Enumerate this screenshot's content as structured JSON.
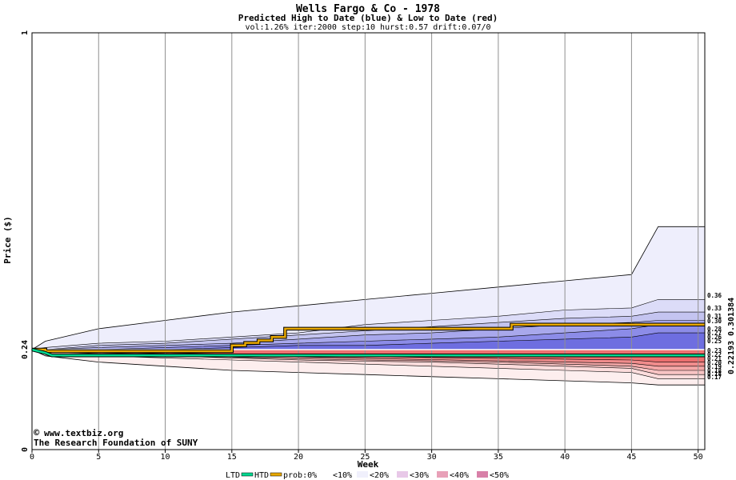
{
  "chart_data": {
    "type": "area",
    "title": "Wells Fargo & Co - 1978",
    "subtitle": "Predicted High to Date (blue) &  Low to Date (red)",
    "params": "vol:1.26% iter:2000 step:10 hurst:0.57 drift:0.07/0",
    "xlabel": "Week",
    "ylabel": "Price ($)",
    "xlim": [
      0,
      50.5
    ],
    "ylim": [
      0,
      1
    ],
    "x_ticks": [
      0,
      5,
      10,
      15,
      20,
      25,
      30,
      35,
      40,
      45,
      50
    ],
    "x_tick_labels": [
      "0",
      "5",
      "10",
      "15",
      "20",
      "25",
      "30",
      "35",
      "40",
      "45",
      "50"
    ],
    "y_tick_labels": [
      "0",
      "0.24",
      "1"
    ],
    "y_ticks": [
      0,
      0.24,
      1
    ],
    "start_price": 0.24,
    "grid": true,
    "bands_x": [
      0,
      1,
      5,
      10,
      15,
      20,
      25,
      30,
      35,
      40,
      45,
      47,
      50.5
    ],
    "envelope_high": [
      0.24,
      0.26,
      0.29,
      0.31,
      0.33,
      0.345,
      0.36,
      0.375,
      0.39,
      0.405,
      0.42,
      0.535,
      0.535
    ],
    "envelope_low": [
      0.24,
      0.225,
      0.21,
      0.2,
      0.19,
      0.185,
      0.18,
      0.175,
      0.17,
      0.165,
      0.16,
      0.155,
      0.155
    ],
    "high_bands": [
      {
        "prob": "<10%",
        "color": "#dcdcf8",
        "upper": [
          0.24,
          0.245,
          0.255,
          0.26,
          0.27,
          0.28,
          0.3,
          0.31,
          0.32,
          0.335,
          0.34,
          0.36,
          0.36
        ]
      },
      {
        "prob": "<20%",
        "color": "#c4c4f0",
        "upper": [
          0.24,
          0.24,
          0.25,
          0.255,
          0.265,
          0.275,
          0.285,
          0.295,
          0.305,
          0.315,
          0.32,
          0.33,
          0.33
        ]
      },
      {
        "prob": "<30%",
        "color": "#a8a8ec",
        "upper": [
          0.24,
          0.24,
          0.245,
          0.25,
          0.255,
          0.265,
          0.275,
          0.28,
          0.29,
          0.3,
          0.305,
          0.31,
          0.31
        ]
      },
      {
        "prob": "<40%",
        "color": "#8c8ce8",
        "upper": [
          0.24,
          0.24,
          0.24,
          0.245,
          0.25,
          0.255,
          0.26,
          0.265,
          0.27,
          0.28,
          0.29,
          0.3,
          0.3
        ]
      },
      {
        "prob": "<50%",
        "color": "#6e6ee0",
        "upper": [
          0.24,
          0.24,
          0.24,
          0.24,
          0.245,
          0.25,
          0.25,
          0.255,
          0.26,
          0.265,
          0.27,
          0.28,
          0.28
        ]
      }
    ],
    "low_bands": [
      {
        "prob": "<10%",
        "color": "#fcdcdc",
        "lower": [
          0.24,
          0.23,
          0.225,
          0.22,
          0.215,
          0.21,
          0.205,
          0.2,
          0.195,
          0.19,
          0.185,
          0.17,
          0.17
        ]
      },
      {
        "prob": "<20%",
        "color": "#f8c4c4",
        "lower": [
          0.24,
          0.235,
          0.23,
          0.225,
          0.22,
          0.215,
          0.212,
          0.21,
          0.205,
          0.2,
          0.195,
          0.18,
          0.18
        ]
      },
      {
        "prob": "<30%",
        "color": "#f4a8a8",
        "lower": [
          0.24,
          0.238,
          0.232,
          0.228,
          0.222,
          0.218,
          0.215,
          0.213,
          0.21,
          0.205,
          0.2,
          0.19,
          0.19
        ]
      },
      {
        "prob": "<40%",
        "color": "#f08c8c",
        "lower": [
          0.24,
          0.238,
          0.234,
          0.23,
          0.226,
          0.222,
          0.219,
          0.216,
          0.213,
          0.21,
          0.207,
          0.2,
          0.2
        ]
      },
      {
        "prob": "<50%",
        "color": "#ec7070",
        "lower": [
          0.24,
          0.238,
          0.235,
          0.232,
          0.229,
          0.226,
          0.223,
          0.221,
          0.219,
          0.217,
          0.215,
          0.21,
          0.21
        ]
      }
    ],
    "series": [
      {
        "name": "HTD",
        "color": "#e8a800",
        "x": [
          0,
          1,
          5,
          10,
          14.5,
          15,
          16,
          17,
          18,
          19,
          25,
          30,
          35,
          36,
          40,
          45,
          50.5
        ],
        "values": [
          0.24,
          0.236,
          0.236,
          0.236,
          0.236,
          0.25,
          0.256,
          0.262,
          0.27,
          0.29,
          0.29,
          0.29,
          0.29,
          0.3,
          0.3,
          0.3,
          0.3
        ]
      },
      {
        "name": "LTD",
        "color": "#00d890",
        "x": [
          0,
          1,
          1.5,
          5,
          10,
          15,
          20,
          25,
          30,
          35,
          40,
          45,
          50.5
        ],
        "values": [
          0.24,
          0.232,
          0.226,
          0.226,
          0.226,
          0.226,
          0.226,
          0.226,
          0.226,
          0.226,
          0.226,
          0.226,
          0.226
        ]
      }
    ],
    "right_labels_high": [
      "0.36",
      "0.33",
      "0.31",
      "0.30",
      "0.28",
      "0.27",
      "0.26",
      "0.25"
    ],
    "right_labels_low": [
      "0.23",
      "0.22",
      "0.21",
      "0.20",
      "0.19",
      "0.18",
      "0.18",
      "0.17"
    ],
    "right_vertical_labels": {
      "low": "0.22193",
      "high": "0.301384"
    },
    "legend": {
      "placement": "bottom",
      "items": [
        "LTD",
        "HTD",
        "prob:0%",
        "<10%",
        "<20%",
        "<30%",
        "<40%",
        "<50%"
      ]
    },
    "credits": [
      "www.textbiz.org",
      "The Research Foundation of SUNY"
    ]
  }
}
